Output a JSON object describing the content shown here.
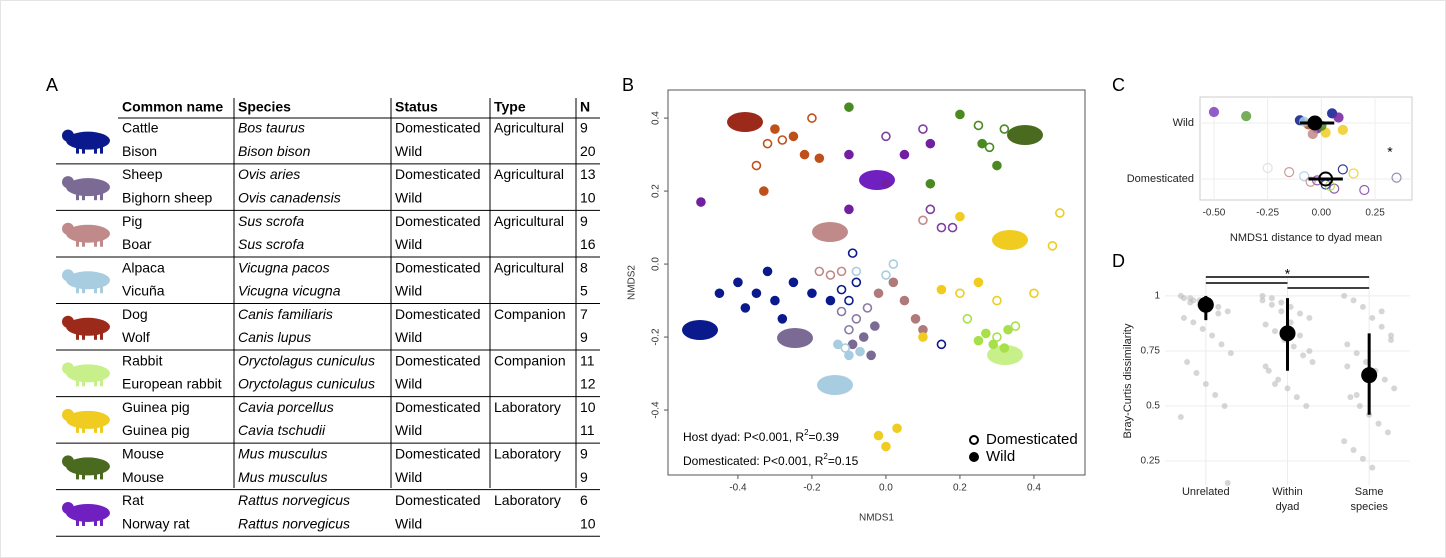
{
  "table": {
    "label": "A",
    "headers": [
      "Common name",
      "Species",
      "Status",
      "Type",
      "N"
    ],
    "rows": [
      [
        "Cattle",
        "Bos taurus",
        "Domesticated",
        "Agricultural",
        9
      ],
      [
        "Bison",
        "Bison bison",
        "Wild",
        null,
        20
      ],
      [
        "Sheep",
        "Ovis aries",
        "Domesticated",
        "Agricultural",
        13
      ],
      [
        "Bighorn sheep",
        "Ovis canadensis",
        "Wild",
        null,
        10
      ],
      [
        "Pig",
        "Sus scrofa",
        "Domesticated",
        "Agricultural",
        9
      ],
      [
        "Boar",
        "Sus scrofa",
        "Wild",
        null,
        16
      ],
      [
        "Alpaca",
        "Vicugna pacos",
        "Domesticated",
        "Agricultural",
        8
      ],
      [
        "Vicuña",
        "Vicugna vicugna",
        "Wild",
        null,
        5
      ],
      [
        "Dog",
        "Canis familiaris",
        "Domesticated",
        "Companion",
        7
      ],
      [
        "Wolf",
        "Canis lupus",
        "Wild",
        null,
        9
      ],
      [
        "Rabbit",
        "Oryctolagus cuniculus",
        "Domesticated",
        "Companion",
        11
      ],
      [
        "European rabbit",
        "Oryctolagus cuniculus",
        "Wild",
        null,
        12
      ],
      [
        "Guinea pig",
        "Cavia porcellus",
        "Domesticated",
        "Laboratory",
        10
      ],
      [
        "Guinea pig",
        "Cavia tschudii",
        "Wild",
        null,
        11
      ],
      [
        "Mouse",
        "Mus musculus",
        "Domesticated",
        "Laboratory",
        9
      ],
      [
        "Mouse",
        "Mus musculus",
        "Wild",
        null,
        9
      ],
      [
        "Rat",
        "Rattus norvegicus",
        "Domesticated",
        "Laboratory",
        6
      ],
      [
        "Norway rat",
        "Rattus norvegicus",
        "Wild",
        null,
        10
      ]
    ],
    "icon_colors": [
      "#0a1a8c",
      "#7a6a94",
      "#c08a8a",
      "#a8cde0",
      "#9c2a1a",
      "#c8f08a",
      "#f0cc20",
      "#4a6a20",
      "#7020c0"
    ]
  },
  "chart_data": [
    {
      "type": "scatter",
      "label": "B",
      "xlabel": "NMDS1",
      "ylabel": "NMDS2",
      "xlim": [
        -0.589,
        0.538
      ],
      "ylim": [
        -0.578,
        0.477
      ],
      "xticks": [
        -0.4,
        -0.2,
        {
          "value": 0,
          "label": "0.0"
        },
        0.2,
        0.4
      ],
      "yticks": [
        -0.4,
        -0.2,
        {
          "value": 0,
          "label": "0.0"
        },
        0.2,
        0.4
      ],
      "legend": [
        {
          "label": "Domesticated",
          "filled": false
        },
        {
          "label": "Wild",
          "filled": true
        }
      ],
      "annotations": [
        {
          "text": "Host dyad: P<0.001, R",
          "sup": "2",
          "rest": "=0.39"
        },
        {
          "text": "Domesticated: P<0.001, R",
          "sup": "2",
          "rest": "=0.15"
        }
      ],
      "series": [
        {
          "color": "#0a1a8c",
          "filled": false,
          "x": [
            -0.1,
            -0.08,
            -0.09,
            0.15,
            -0.12
          ],
          "values": [
            -0.1,
            -0.05,
            0.03,
            -0.22,
            -0.07
          ]
        },
        {
          "color": "#0a1a8c",
          "filled": true,
          "x": [
            -0.4,
            -0.35,
            -0.3,
            -0.25,
            -0.2,
            -0.32,
            -0.45,
            -0.15,
            -0.28,
            -0.38
          ],
          "values": [
            -0.05,
            -0.08,
            -0.1,
            -0.05,
            -0.08,
            -0.02,
            -0.08,
            -0.1,
            -0.15,
            -0.12
          ]
        },
        {
          "color": "#8a7aa4",
          "filled": false,
          "x": [
            -0.1,
            -0.08,
            -0.05,
            -0.12
          ],
          "values": [
            -0.18,
            -0.15,
            -0.12,
            -0.13
          ]
        },
        {
          "color": "#7a6a94",
          "filled": true,
          "x": [
            -0.06,
            -0.04,
            -0.09,
            -0.03
          ],
          "values": [
            -0.2,
            -0.25,
            -0.22,
            -0.17
          ]
        },
        {
          "color": "#c08a8a",
          "filled": false,
          "x": [
            -0.18,
            -0.15,
            -0.12,
            0.1,
            0.12
          ],
          "values": [
            -0.02,
            -0.03,
            -0.02,
            0.12,
            0.15
          ]
        },
        {
          "color": "#b07a7a",
          "filled": true,
          "x": [
            0.05,
            0.08,
            0.02,
            0.1,
            -0.02
          ],
          "values": [
            -0.1,
            -0.15,
            -0.05,
            -0.18,
            -0.08
          ]
        },
        {
          "color": "#a8cde0",
          "filled": false,
          "x": [
            -0.08,
            0.02,
            0,
            -0.11
          ],
          "values": [
            -0.02,
            0,
            -0.03,
            -0.23
          ]
        },
        {
          "color": "#a8cde0",
          "filled": true,
          "x": [
            -0.1,
            -0.13,
            -0.07
          ],
          "values": [
            -0.25,
            -0.22,
            -0.24
          ]
        },
        {
          "color": "#c0501a",
          "filled": false,
          "x": [
            -0.32,
            -0.28,
            -0.35,
            -0.2
          ],
          "values": [
            0.33,
            0.34,
            0.27,
            0.4
          ]
        },
        {
          "color": "#c0501a",
          "filled": true,
          "x": [
            -0.3,
            -0.22,
            -0.18,
            -0.33,
            -0.25
          ],
          "values": [
            0.37,
            0.3,
            0.29,
            0.2,
            0.35
          ]
        },
        {
          "color": "#a8e04a",
          "filled": false,
          "x": [
            0.22,
            0.3,
            0.35
          ],
          "values": [
            -0.15,
            -0.2,
            -0.17
          ]
        },
        {
          "color": "#a8e04a",
          "filled": true,
          "x": [
            0.27,
            0.32,
            0.25,
            0.33,
            0.29
          ],
          "values": [
            -0.19,
            -0.23,
            -0.21,
            -0.18,
            -0.22
          ]
        },
        {
          "color": "#f0cc20",
          "filled": false,
          "x": [
            0.2,
            0.3,
            0.4,
            0.47,
            0.45
          ],
          "values": [
            -0.08,
            -0.1,
            -0.08,
            0.14,
            0.05
          ]
        },
        {
          "color": "#f0cc20",
          "filled": true,
          "x": [
            0.25,
            0.2,
            0.1,
            0.15,
            0,
            0.03,
            -0.02
          ],
          "values": [
            -0.05,
            0.13,
            -0.2,
            -0.07,
            -0.5,
            -0.45,
            -0.47
          ]
        },
        {
          "color": "#4a8a20",
          "filled": false,
          "x": [
            0.25,
            0.28,
            0.32
          ],
          "values": [
            0.38,
            0.32,
            0.37
          ]
        },
        {
          "color": "#4a8a20",
          "filled": true,
          "x": [
            0.2,
            0.26,
            0.3,
            -0.1,
            0.12
          ],
          "values": [
            0.41,
            0.33,
            0.27,
            0.43,
            0.22
          ]
        },
        {
          "color": "#8040a0",
          "filled": false,
          "x": [
            0.12,
            0.15,
            0.18,
            0,
            0.1
          ],
          "values": [
            0.15,
            0.1,
            0.1,
            0.35,
            0.37
          ]
        },
        {
          "color": "#7020a0",
          "filled": true,
          "x": [
            -0.1,
            0.05,
            0.12,
            -0.5,
            -0.1,
            0
          ],
          "values": [
            0.3,
            0.3,
            0.33,
            0.17,
            0.15,
            0.22
          ]
        }
      ]
    },
    {
      "type": "dot-range",
      "label": "C",
      "xlabel": "NMDS1 distance to dyad mean",
      "xlim": [
        -0.565,
        0.422
      ],
      "xticks": [
        {
          "value": -0.5,
          "label": "-0.50"
        },
        {
          "value": -0.25,
          "label": "-0.25"
        },
        {
          "value": 0,
          "label": "0.00"
        },
        {
          "value": 0.25,
          "label": "0.25"
        }
      ],
      "categories": [
        "Wild",
        "Domesticated"
      ],
      "filled": [
        true,
        false
      ],
      "points": [
        {
          "values": [
            -0.5,
            -0.35,
            -0.1,
            -0.06,
            -0.02,
            0.02,
            0.05,
            0.08,
            -0.08,
            0,
            0.1,
            -0.04
          ],
          "colors": [
            "#8040c0",
            "#60a040",
            "#0a1a8c",
            "#c0501a",
            "#7020a0",
            "#f0cc20",
            "#0a1a8c",
            "#7020a0",
            "#a8cde0",
            "#4a8a20",
            "#f0cc20",
            "#c08a8a"
          ]
        },
        {
          "values": [
            -0.25,
            -0.15,
            -0.08,
            -0.02,
            0.02,
            0.06,
            0.1,
            0.15,
            0.35,
            -0.05,
            0.04,
            0.2
          ],
          "colors": [
            "#dddddd",
            "#c08a8a",
            "#a8cde0",
            "#8040a0",
            "#0a1a8c",
            "#8040a0",
            "#0a1a8c",
            "#f0cc20",
            "#8a7aa4",
            "#c08a8a",
            "#a8e04a",
            "#8040a0"
          ]
        }
      ],
      "means": [
        -0.03,
        0.02
      ],
      "ci": [
        [
          -0.1,
          0.06
        ],
        [
          -0.06,
          0.1
        ]
      ],
      "annotation": "*"
    },
    {
      "type": "dot-range",
      "label": "D",
      "ylabel": "Bray-Curtis dissimilarity",
      "ylim": [
        0.141,
        1.086
      ],
      "yticks": [
        0.25,
        0.5,
        0.75,
        1
      ],
      "categories": [
        [
          "Unrelated"
        ],
        [
          "Within",
          "dyad"
        ],
        [
          "Same",
          "species"
        ]
      ],
      "points": [
        {
          "values": [
            1,
            0.99,
            0.98,
            0.97,
            0.95,
            0.93,
            0.9,
            0.88,
            0.85,
            0.82,
            0.78,
            0.74,
            0.7,
            0.65,
            0.6,
            0.55,
            0.5,
            0.45,
            0.97,
            0.96,
            0.94,
            0.92,
            0.15,
            0.99,
            0.98
          ]
        },
        {
          "values": [
            1,
            0.99,
            0.97,
            0.95,
            0.92,
            0.9,
            0.87,
            0.84,
            0.8,
            0.77,
            0.73,
            0.7,
            0.66,
            0.62,
            0.58,
            0.54,
            0.5,
            0.98,
            0.96,
            0.93,
            0.88,
            0.82,
            0.75,
            0.68,
            0.6
          ]
        },
        {
          "values": [
            1,
            0.98,
            0.95,
            0.9,
            0.86,
            0.82,
            0.78,
            0.74,
            0.7,
            0.66,
            0.62,
            0.58,
            0.54,
            0.5,
            0.46,
            0.42,
            0.38,
            0.34,
            0.3,
            0.26,
            0.22,
            0.93,
            0.8,
            0.68,
            0.55
          ]
        }
      ],
      "means": [
        0.96,
        0.83,
        0.64
      ],
      "ci": [
        [
          0.89,
          1
        ],
        [
          0.66,
          0.99
        ],
        [
          0.46,
          0.83
        ]
      ],
      "annotation": "*"
    }
  ]
}
